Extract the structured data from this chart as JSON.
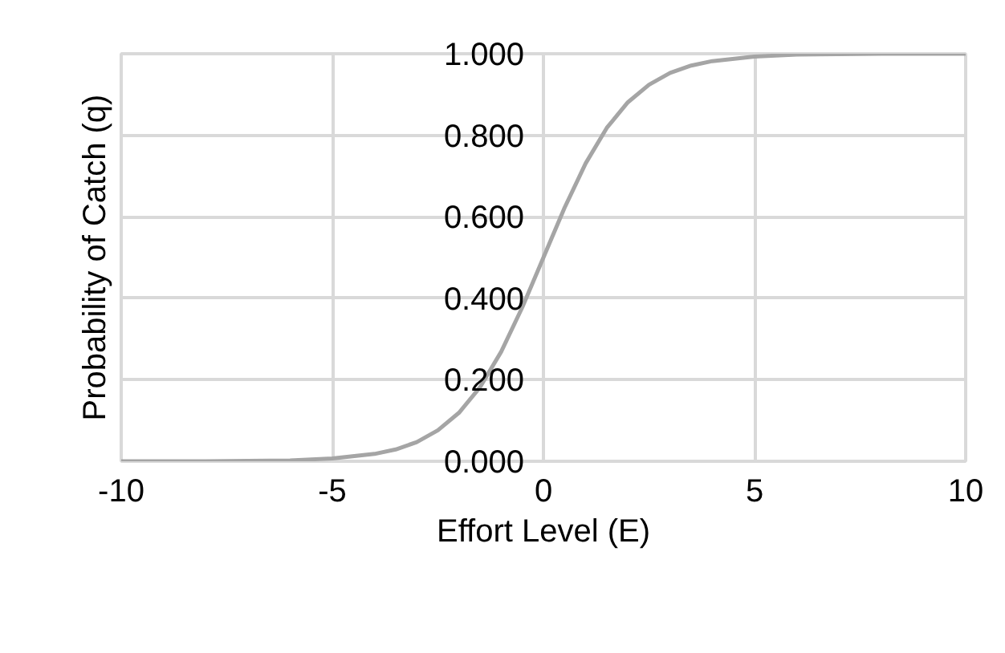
{
  "chart_data": {
    "type": "line",
    "xlabel": "Effort Level (E)",
    "ylabel": "Probability of Catch (q)",
    "x": [
      -10,
      -8,
      -6,
      -5,
      -4,
      -3.5,
      -3,
      -2.5,
      -2,
      -1.5,
      -1,
      -0.5,
      0,
      0.5,
      1,
      1.5,
      2,
      2.5,
      3,
      3.5,
      4,
      5,
      6,
      8,
      10
    ],
    "series": [
      {
        "color": "#a5a5a5",
        "values": [
          0.0,
          0.0,
          0.002,
          0.007,
          0.018,
          0.029,
          0.047,
          0.076,
          0.119,
          0.182,
          0.269,
          0.378,
          0.5,
          0.622,
          0.731,
          0.818,
          0.881,
          0.924,
          0.953,
          0.971,
          0.982,
          0.993,
          0.998,
          1.0,
          1.0
        ]
      }
    ],
    "xlim": [
      -10,
      10
    ],
    "ylim": [
      0,
      1
    ],
    "xticks": [
      -10,
      -5,
      0,
      5,
      10
    ],
    "yticks": [
      {
        "value": 0,
        "label": "0.000"
      },
      {
        "value": 0.2,
        "label": "0.200"
      },
      {
        "value": 0.4,
        "label": "0.400"
      },
      {
        "value": 0.6,
        "label": "0.600"
      },
      {
        "value": 0.8,
        "label": "0.800"
      },
      {
        "value": 1,
        "label": "1.000"
      }
    ],
    "grid": true,
    "marker": "none",
    "line_style": "solid"
  }
}
